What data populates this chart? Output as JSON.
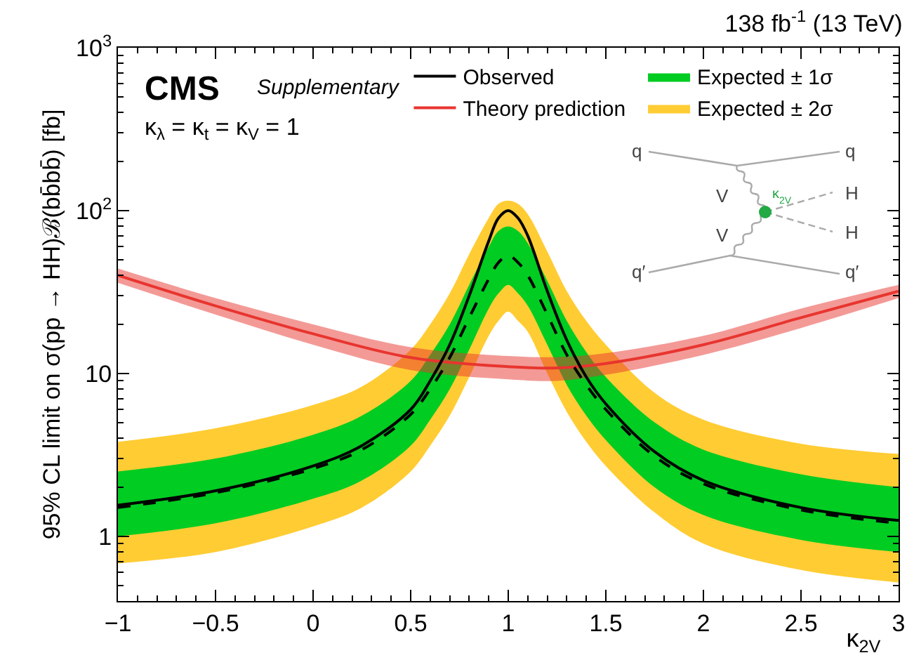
{
  "chart_data": {
    "type": "line",
    "title": "138 fb$^{-1}$ (13 TeV)",
    "xlabel": "κ$_{2V}$",
    "ylabel": "95% CL limit on σ(pp → HH)ℬ(bb̄bb̄) [fb]",
    "annotations": [
      "CMS",
      "Supplementary",
      "κ$_{λ}$ = κ$_{t}$ = κ$_{V}$ = 1",
      "q",
      "q",
      "q′",
      "q′",
      "V",
      "V",
      "H",
      "H",
      "κ$_{2V}$"
    ],
    "x": [
      -1,
      -0.5,
      0,
      0.25,
      0.5,
      0.6,
      0.7,
      0.8,
      0.9,
      0.95,
      1.0,
      1.05,
      1.1,
      1.2,
      1.3,
      1.4,
      1.5,
      1.75,
      2,
      2.5,
      3
    ],
    "series": [
      {
        "name": "Expected ± 2σ",
        "type": "area",
        "color": "#ffcc33",
        "values": [
          null,
          null,
          null,
          null,
          null,
          null,
          null,
          null,
          null,
          null,
          null,
          null,
          null,
          null,
          null,
          null,
          null,
          null,
          null,
          null,
          null
        ],
        "lower": [
          0.68,
          0.8,
          1.15,
          1.5,
          2.5,
          3.6,
          5.5,
          9.5,
          17,
          21,
          24,
          21,
          18,
          10,
          5.8,
          3.8,
          2.7,
          1.4,
          0.9,
          0.62,
          0.52
        ],
        "upper": [
          3.8,
          4.6,
          6.4,
          8.3,
          14,
          20,
          31,
          54,
          90,
          110,
          115,
          110,
          95,
          56,
          32,
          21,
          15,
          7.6,
          5.2,
          3.7,
          3.2
        ]
      },
      {
        "name": "Expected ± 1σ",
        "type": "area",
        "color": "#00cc22",
        "values": [
          null,
          null,
          null,
          null,
          null,
          null,
          null,
          null,
          null,
          null,
          null,
          null,
          null,
          null,
          null,
          null,
          null,
          null,
          null,
          null,
          null
        ],
        "lower": [
          1.0,
          1.2,
          1.7,
          2.2,
          3.6,
          5.2,
          8,
          14,
          25,
          31,
          35,
          31,
          26,
          15,
          8.5,
          5.5,
          3.9,
          2.0,
          1.35,
          0.95,
          0.8
        ],
        "upper": [
          2.5,
          3.0,
          4.2,
          5.5,
          9,
          13,
          20,
          35,
          60,
          75,
          80,
          75,
          63,
          37,
          21,
          13.5,
          9.5,
          5,
          3.4,
          2.4,
          2.0
        ]
      },
      {
        "name": "Theory prediction",
        "type": "line",
        "color": "#e8352f",
        "x": [
          -1,
          -0.5,
          0,
          0.5,
          1,
          1.25,
          1.5,
          2,
          2.5,
          3
        ],
        "values": [
          40,
          26,
          17.5,
          12.5,
          11,
          10.8,
          11.5,
          15,
          22,
          32
        ],
        "lower": [
          36,
          23,
          15,
          10.5,
          9.2,
          9,
          9.8,
          13,
          19,
          29
        ],
        "upper": [
          44,
          29,
          20,
          14.5,
          12.8,
          12.6,
          13.3,
          17,
          25,
          35
        ]
      },
      {
        "type": "line",
        "color": "#000000",
        "line_style": "dashed",
        "values": [
          1.5,
          1.85,
          2.6,
          3.4,
          5.6,
          8,
          12.5,
          22,
          38,
          48,
          53,
          48,
          40,
          23,
          13,
          8.5,
          6,
          3.1,
          2.1,
          1.45,
          1.2
        ]
      },
      {
        "name": "Observed",
        "type": "line",
        "color": "#000000",
        "line_style": "solid",
        "values": [
          1.55,
          1.9,
          2.7,
          3.6,
          6,
          9,
          15,
          30,
          65,
          90,
          100,
          90,
          70,
          32,
          16,
          9.5,
          6.5,
          3.3,
          2.2,
          1.5,
          1.25
        ]
      }
    ],
    "log": "y",
    "xlim": [
      -1,
      3
    ],
    "ylim": [
      0.4,
      1000
    ],
    "xticks": [
      {
        "value": -1,
        "label": "−1"
      },
      {
        "value": -0.5,
        "label": "−0.5"
      },
      0,
      0.5,
      1,
      1.5,
      2,
      2.5,
      3
    ],
    "yticks": [
      1,
      10,
      {
        "value": 100,
        "label": "10$^{2}$"
      },
      {
        "value": 1000,
        "label": "10$^{3}$"
      }
    ],
    "grid": false,
    "legend": "top right",
    "marker": "none"
  }
}
